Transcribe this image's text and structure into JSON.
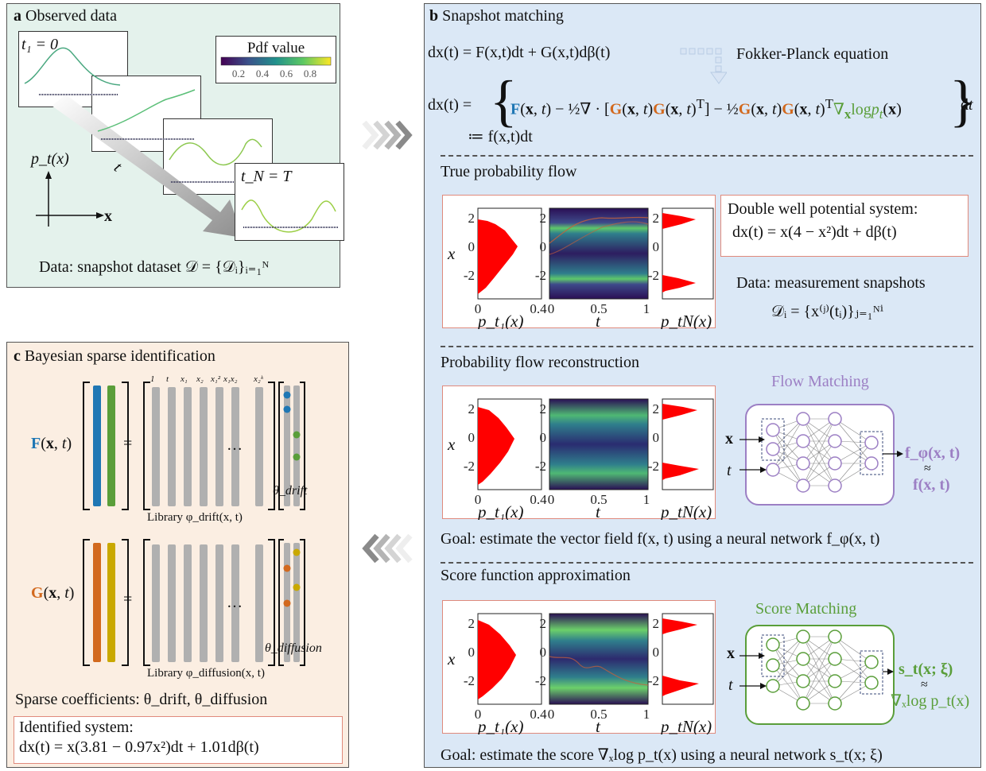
{
  "panel_a": {
    "letter": "a",
    "title": "Observed data",
    "t1_label": "t₁ = 0",
    "tN_label": "t_N = T",
    "t_label": "t",
    "ylabel": "p_t(x)",
    "xlabel": "x",
    "colorbar_title": "Pdf value",
    "colorbar_ticks": [
      "0.2",
      "0.4",
      "0.6",
      "0.8"
    ],
    "data_caption": "Data: snapshot dataset 𝒟 = {𝒟ᵢ}ᵢ₌₁ᴺ"
  },
  "panel_b": {
    "letter": "b",
    "title": "Snapshot matching",
    "sde": "dx(t) = F(x,t)dt + G(x,t)dβ(t)",
    "fokker_planck": "Fokker-Planck equation",
    "pf_ode_lhs": "dx(t) =",
    "pf_ode_def": "≔ f(x,t)dt",
    "section1": {
      "title": "True probability flow",
      "system_title": "Double well potential system:",
      "system_eq": "dx(t) = x(4 − x²)dt + dβ(t)",
      "data_line1": "Data: measurement snapshots",
      "data_line2": "𝒟ᵢ = {x⁽ʲ⁾(tᵢ)}ⱼ₌₁ᴺⁱ"
    },
    "section2": {
      "title": "Probability flow reconstruction",
      "net_title": "Flow Matching",
      "net_in_x": "x",
      "net_in_t": "t",
      "net_out": "f_φ(x, t)",
      "net_approx": "≈",
      "net_out2": "f(x, t)",
      "goal": "Goal: estimate the vector field f(x, t) using a neural network f_φ(x, t)"
    },
    "section3": {
      "title": "Score function approximation",
      "net_title": "Score Matching",
      "net_in_x": "x",
      "net_in_t": "t",
      "net_out": "s_t(x; ξ)",
      "net_approx": "≈",
      "net_out2": "∇ₓlog p_t(x)",
      "goal": "Goal: estimate the score ∇ₓlog p_t(x) using a neural network s_t(x; ξ)"
    },
    "plot_labels": {
      "x_axis_var": "x",
      "hist_left_xlabel": "p_t₁(x)",
      "heat_xlabel": "t",
      "hist_right_xlabel": "p_tN(x)",
      "yticks": [
        "2",
        "0",
        "-2"
      ],
      "hist_xticks": [
        "0",
        "0.4"
      ],
      "heat_xticks": [
        "0",
        "0.5",
        "1"
      ]
    }
  },
  "panel_c": {
    "letter": "c",
    "title": "Bayesian sparse identification",
    "drift_lhs": "F(x, t)",
    "diffusion_lhs": "G(x, t)",
    "equals": "=",
    "ellipsis": "…",
    "library_terms": [
      "1",
      "t",
      "x₁",
      "x₂",
      "x₁²",
      "x₁x₂",
      "x₂ᵏ"
    ],
    "drift_library": "Library φ_drift(x, t)",
    "diffusion_library": "Library φ_diffusion(x, t)",
    "theta_drift": "θ_drift",
    "theta_diffusion": "θ_diffusion",
    "sparse_caption": "Sparse coefficients: θ_drift, θ_diffusion",
    "identified_title": "Identified system:",
    "identified_eq": "dx(t) = x(3.81 − 0.97x²)dt + 1.01dβ(t)"
  },
  "colors": {
    "blue": "#1f77b4",
    "green": "#5a9e3a",
    "orange": "#d2691e",
    "gold": "#c9a800",
    "purple": "#9c7fc4",
    "hist_red": "#ff0000",
    "panel_a_bg": "#e4f2ec",
    "panel_b_bg": "#dbe8f6",
    "panel_c_bg": "#fbeee2"
  }
}
